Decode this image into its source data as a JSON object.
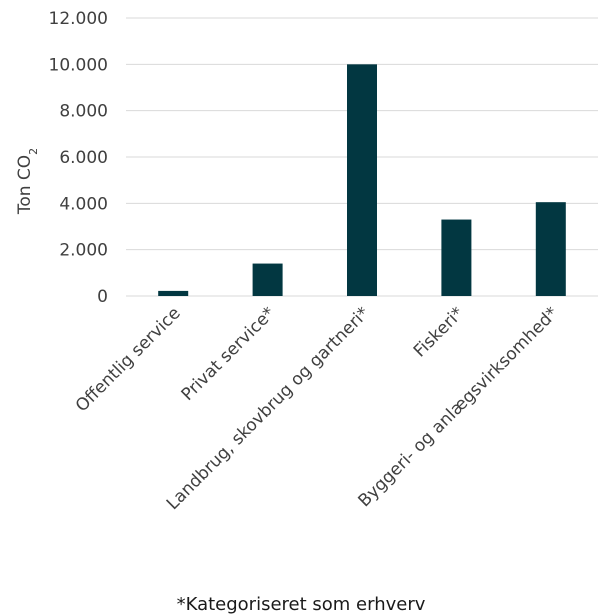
{
  "chart_data": {
    "type": "bar",
    "categories": [
      "Offentlig service",
      "Privat service*",
      "Landbrug, skovbrug og gartneri*",
      "Fiskeri*",
      "Byggeri- og anlægsvirksomhed*"
    ],
    "values": [
      220,
      1400,
      10000,
      3300,
      4050
    ],
    "ylabel": "Ton CO",
    "ylabel_subscript": "2",
    "ylim": [
      0,
      12000
    ],
    "yticks": [
      0,
      2000,
      4000,
      6000,
      8000,
      10000,
      12000
    ],
    "ytick_labels": [
      "0",
      "2.000",
      "4.000",
      "6.000",
      "8.000",
      "10.000",
      "12.000"
    ],
    "grid": true,
    "bar_color": "#023741",
    "grid_color": "#d9d9d9",
    "footnote": "*Kategoriseret som erhverv"
  }
}
